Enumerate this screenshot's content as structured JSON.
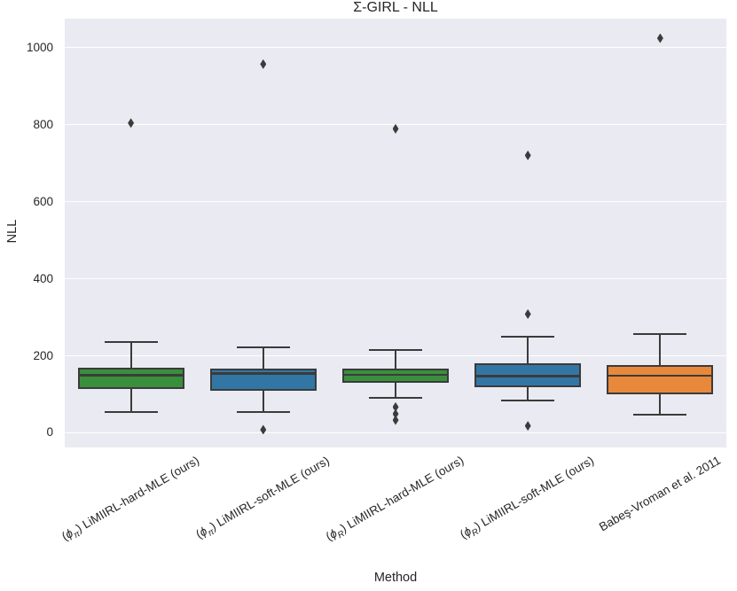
{
  "chart_data": {
    "type": "box",
    "title": "Σ-GIRL - NLL",
    "xlabel": "Method",
    "ylabel": "NLL",
    "ylim": [
      -38,
      1075
    ],
    "yticks": [
      0,
      200,
      400,
      600,
      800,
      1000
    ],
    "grid": "horizontal white lines on light lavender panel",
    "legend": "none",
    "plot_bg": "#eaeaf2",
    "figure_bg": "#ffffff",
    "edge_color": "#3b3b3b",
    "text_color": "#262626",
    "categories": [
      {
        "lead": "(",
        "phi": "ϕ",
        "sub": "π",
        "rest": ") LiMIIRL-hard-MLE (ours)"
      },
      {
        "lead": "(",
        "phi": "ϕ",
        "sub": "π",
        "rest": ") LiMIIRL-soft-MLE (ours)"
      },
      {
        "lead": "(",
        "phi": "ϕ",
        "sub": "R",
        "rest": ") LiMIIRL-hard-MLE (ours)"
      },
      {
        "lead": "(",
        "phi": "ϕ",
        "sub": "R",
        "rest": ") LiMIIRL-soft-MLE (ours)"
      },
      {
        "lead": "Babeş-Vroman et al. 2011",
        "phi": "",
        "sub": "",
        "rest": ""
      }
    ],
    "series": [
      {
        "name": "(ϕπ) LiMIIRL-hard-MLE (ours)",
        "color": "#3a8f3d",
        "whisker_low": 55,
        "q1": 114,
        "median": 149,
        "q3": 170,
        "whisker_high": 236,
        "outliers": [
          804
        ]
      },
      {
        "name": "(ϕπ) LiMIIRL-soft-MLE (ours)",
        "color": "#3276a6",
        "whisker_low": 53,
        "q1": 110,
        "median": 154,
        "q3": 167,
        "whisker_high": 223,
        "outliers": [
          8,
          957
        ]
      },
      {
        "name": "(ϕR) LiMIIRL-hard-MLE (ours)",
        "color": "#3a8f3d",
        "whisker_low": 90,
        "q1": 129,
        "median": 150,
        "q3": 167,
        "whisker_high": 216,
        "outliers": [
          33,
          49,
          67,
          789
        ]
      },
      {
        "name": "(ϕR) LiMIIRL-soft-MLE (ours)",
        "color": "#3276a6",
        "whisker_low": 84,
        "q1": 119,
        "median": 147,
        "q3": 180,
        "whisker_high": 250,
        "outliers": [
          18,
          308,
          720
        ]
      },
      {
        "name": "Babeş-Vroman et al. 2011",
        "color": "#e8883a",
        "whisker_low": 47,
        "q1": 99,
        "median": 148,
        "q3": 176,
        "whisker_high": 256,
        "outliers": [
          1024
        ]
      }
    ]
  }
}
